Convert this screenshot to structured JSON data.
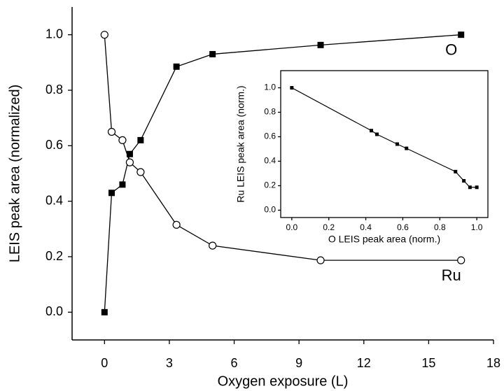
{
  "chart_data": [
    {
      "type": "line",
      "x_label": "Oxygen exposure (L)",
      "y_label": "LEIS peak area (normalized)",
      "xlim": [
        -1.5,
        18
      ],
      "ylim": [
        -0.1,
        1.1
      ],
      "xticks": [
        0,
        3,
        6,
        9,
        12,
        15,
        18
      ],
      "yticks": [
        {
          "value": 0,
          "label": "0.0"
        },
        0.2,
        0.4,
        0.6,
        0.8,
        {
          "value": 1,
          "label": "1.0"
        }
      ],
      "x": [
        0,
        0.33,
        0.83,
        1.17,
        1.67,
        3.33,
        5,
        10,
        16.5
      ],
      "series": [
        {
          "name": "O",
          "color": "#000000",
          "marker": "square",
          "values": [
            0,
            0.43,
            0.46,
            0.57,
            0.62,
            0.885,
            0.93,
            0.963,
            1.0
          ]
        },
        {
          "name": "Ru",
          "color": "#000000",
          "marker": "circle",
          "values": [
            1.0,
            0.65,
            0.62,
            0.54,
            0.505,
            0.315,
            0.24,
            0.187,
            0.187
          ]
        }
      ]
    },
    {
      "type": "line",
      "x_label": "O LEIS peak area (norm.)",
      "y_label": "Ru LEIS peak area (norm.)",
      "xlim": [
        -0.06,
        1.06
      ],
      "ylim": [
        -0.06,
        1.14
      ],
      "xticks": [
        {
          "value": 0,
          "label": "0.0"
        },
        0.2,
        0.4,
        0.6,
        0.8,
        {
          "value": 1,
          "label": "1.0"
        }
      ],
      "yticks": [
        {
          "value": 0,
          "label": "0.0"
        },
        0.2,
        0.4,
        0.6,
        0.8,
        {
          "value": 1,
          "label": "1.0"
        }
      ],
      "x": [
        0,
        0.43,
        0.46,
        0.57,
        0.62,
        0.885,
        0.93,
        0.963,
        1.0
      ],
      "series": [
        {
          "color": "#000000",
          "marker": "small-square",
          "values": [
            1.0,
            0.65,
            0.62,
            0.54,
            0.505,
            0.315,
            0.24,
            0.187,
            0.187
          ]
        }
      ]
    }
  ]
}
